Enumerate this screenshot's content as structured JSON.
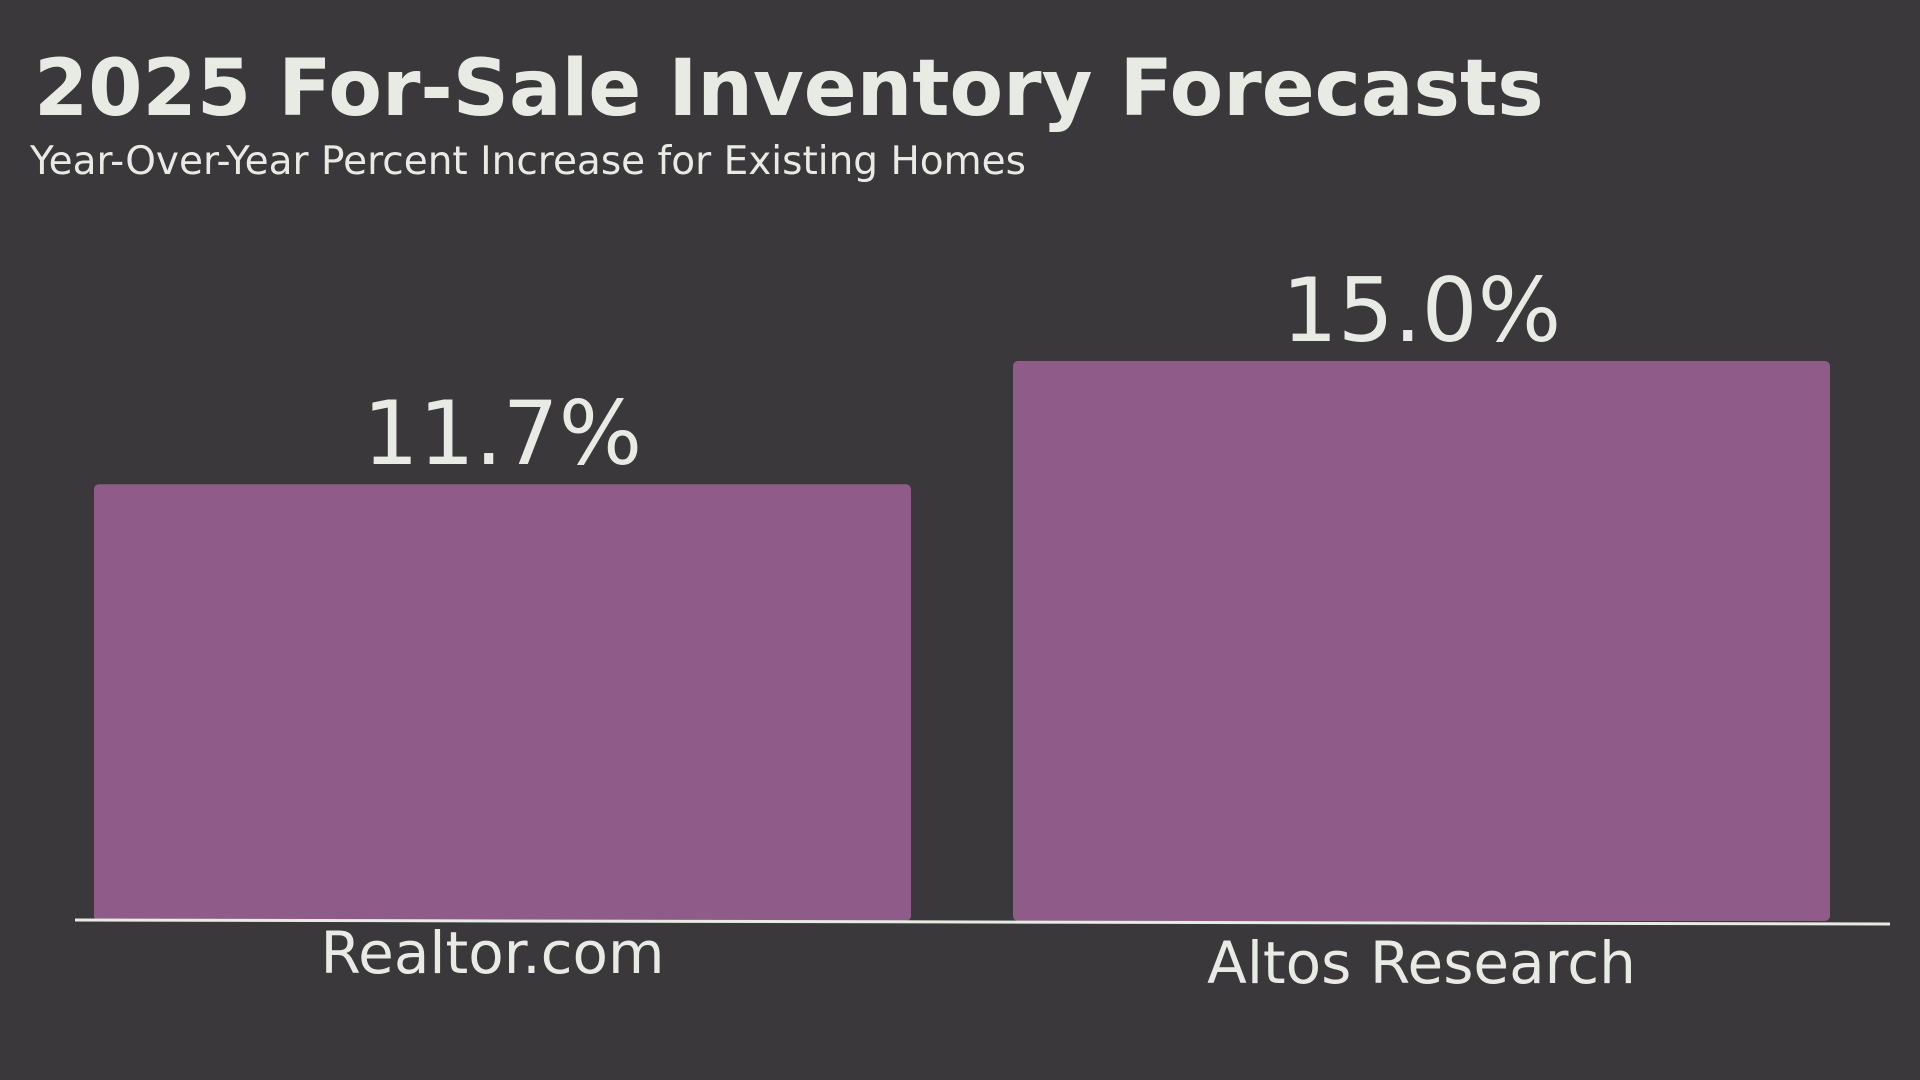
{
  "header": {
    "title": "2025 For-Sale Inventory Forecasts",
    "subtitle": "Year-Over-Year Percent Increase for Existing Homes"
  },
  "colors": {
    "background": "#3a383b",
    "bar": "#8f5c89",
    "text": "#e8ebe3",
    "axis": "#e8ebe3"
  },
  "chart_data": {
    "type": "bar",
    "title": "2025 For-Sale Inventory Forecasts",
    "subtitle": "Year-Over-Year Percent Increase for Existing Homes",
    "categories": [
      "Realtor.com",
      "Altos Research"
    ],
    "values": [
      11.7,
      15.0
    ],
    "data_labels": [
      "11.7%",
      "15.0%"
    ],
    "xlabel": "",
    "ylabel": "",
    "ylim": [
      0,
      15.0
    ],
    "grid": false,
    "legend": "none"
  }
}
